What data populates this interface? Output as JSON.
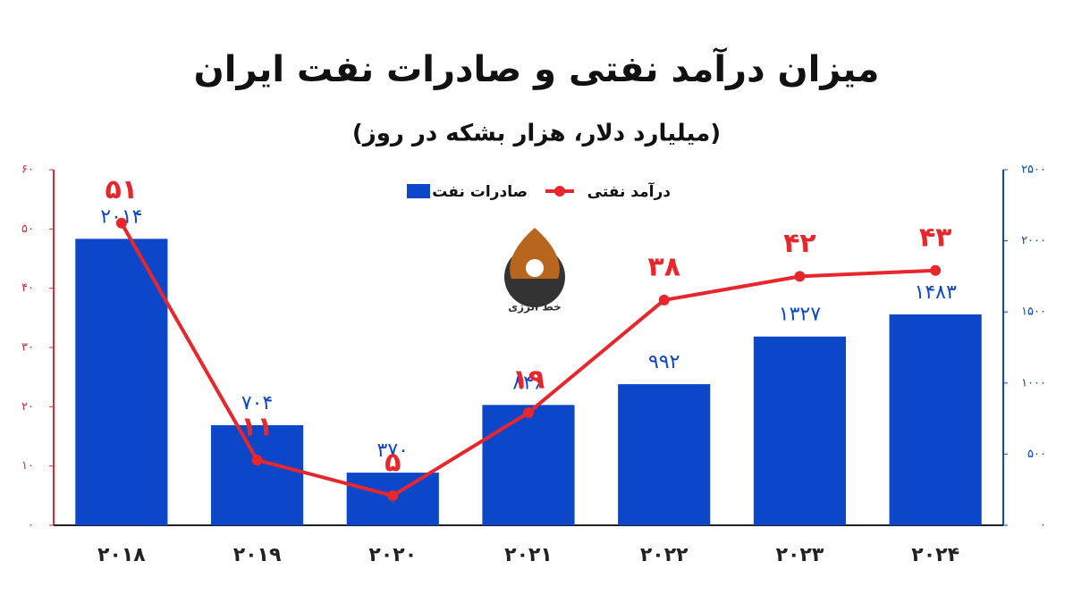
{
  "chart_data": {
    "type": "bar",
    "title": "میزان درآمد نفتی و صادرات نفت ایران",
    "subtitle": "(میلیارد دلار، هزار بشکه در روز)",
    "logo_text": "خط انرژی",
    "categories": [
      "۲۰۱۸",
      "۲۰۱۹",
      "۲۰۲۰",
      "۲۰۲۱",
      "۲۰۲۲",
      "۲۰۲۳",
      "۲۰۲۴"
    ],
    "series": [
      {
        "name": "صادرات نفت",
        "type": "bar",
        "axis": "y2",
        "color": "#0d47c9",
        "values": [
          2014,
          704,
          370,
          846,
          992,
          1327,
          1483
        ],
        "value_labels": [
          "۲۰۱۴",
          "۷۰۴",
          "۳۷۰",
          "۸۴۶",
          "۹۹۲",
          "۱۳۲۷",
          "۱۴۸۳"
        ]
      },
      {
        "name": "درآمد نفتی",
        "type": "line",
        "color": "#e8262b",
        "values": [
          51,
          11,
          5,
          19,
          38,
          42,
          43
        ],
        "value_labels": [
          "۵۱",
          "۱۱",
          "۵",
          "۱۹",
          "۳۸",
          "۴۲",
          "۴۳"
        ]
      }
    ],
    "ylim": [
      0,
      60
    ],
    "yticks": [
      {
        "value": 0,
        "label": "۰"
      },
      {
        "value": 10,
        "label": "۱۰"
      },
      {
        "value": 20,
        "label": "۲۰"
      },
      {
        "value": 30,
        "label": "۳۰"
      },
      {
        "value": 40,
        "label": "۴۰"
      },
      {
        "value": 50,
        "label": "۵۰"
      },
      {
        "value": 60,
        "label": "۶۰"
      }
    ],
    "y2lim": [
      0,
      2500
    ],
    "y2ticks": [
      {
        "value": 0,
        "label": "۰"
      },
      {
        "value": 500,
        "label": "۵۰۰"
      },
      {
        "value": 1000,
        "label": "۱۰۰۰"
      },
      {
        "value": 1500,
        "label": "۱۵۰۰"
      },
      {
        "value": 2000,
        "label": "۲۰۰۰"
      },
      {
        "value": 2500,
        "label": "۲۵۰۰"
      }
    ],
    "grid": false
  }
}
